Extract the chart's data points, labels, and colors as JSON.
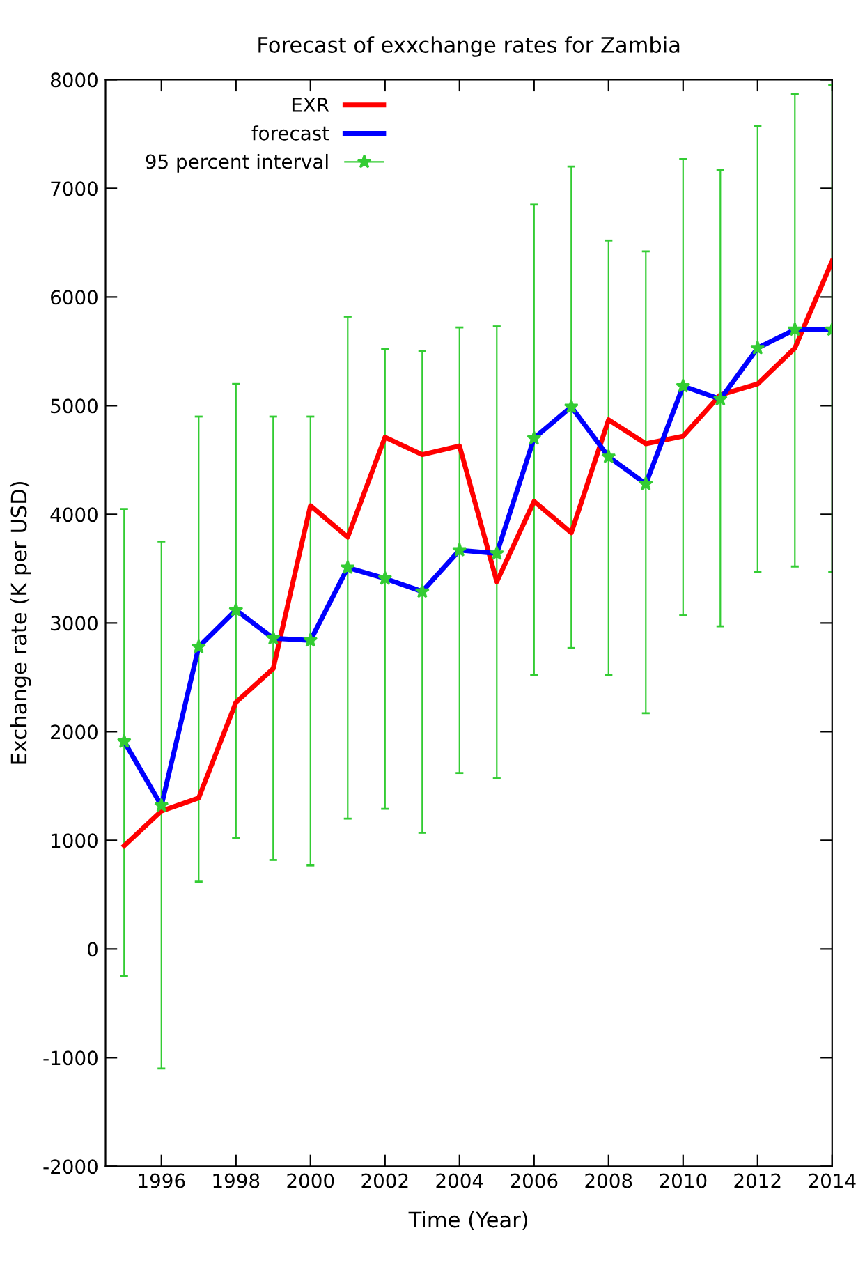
{
  "chart_data": {
    "type": "line",
    "title": "Forecast of exxchange rates for Zambia",
    "xlabel": "Time (Year)",
    "ylabel": "Exchange rate (K per USD)",
    "x": [
      1995,
      1996,
      1997,
      1998,
      1999,
      2000,
      2001,
      2002,
      2003,
      2004,
      2005,
      2006,
      2007,
      2008,
      2009,
      2010,
      2011,
      2012,
      2013,
      2014
    ],
    "series": [
      {
        "name": "EXR",
        "color": "#ff0000",
        "values": [
          950,
          1270,
          1390,
          2270,
          2580,
          4080,
          3790,
          4710,
          4550,
          4630,
          3380,
          4120,
          3830,
          4870,
          4650,
          4720,
          5100,
          5200,
          5530,
          6330
        ]
      },
      {
        "name": "forecast",
        "color": "#0000ff",
        "values": [
          1910,
          1320,
          2780,
          3120,
          2860,
          2840,
          3510,
          3410,
          3290,
          3670,
          3640,
          4700,
          4990,
          4530,
          4280,
          5180,
          5060,
          5530,
          5700,
          5700
        ]
      },
      {
        "name": "95 percent interval",
        "type": "scatter",
        "marker": "star",
        "color": "#33cc33",
        "values": [
          1910,
          1320,
          2780,
          3120,
          2860,
          2840,
          3510,
          3410,
          3290,
          3670,
          3640,
          4700,
          4990,
          4530,
          4280,
          5180,
          5060,
          5530,
          5700,
          5700
        ],
        "errors": [
          [
            -250,
            4050
          ],
          [
            -1100,
            3750
          ],
          [
            620,
            4900
          ],
          [
            1020,
            5200
          ],
          [
            820,
            4900
          ],
          [
            770,
            4900
          ],
          [
            1200,
            5820
          ],
          [
            1290,
            5520
          ],
          [
            1070,
            5500
          ],
          [
            1620,
            5720
          ],
          [
            1570,
            5730
          ],
          [
            2520,
            6850
          ],
          [
            2770,
            7200
          ],
          [
            2520,
            6520
          ],
          [
            2170,
            6420
          ],
          [
            3070,
            7270
          ],
          [
            2970,
            7170
          ],
          [
            3470,
            7570
          ],
          [
            3520,
            7870
          ],
          [
            3470,
            7950
          ]
        ]
      }
    ],
    "xlim": [
      1994.5,
      2014
    ],
    "xticks": [
      1996,
      1998,
      2000,
      2002,
      2004,
      2006,
      2008,
      2010,
      2012,
      2014
    ],
    "ylim": [
      -2000,
      8000
    ],
    "yticks": [
      -2000,
      -1000,
      0,
      1000,
      2000,
      3000,
      4000,
      5000,
      6000,
      7000,
      8000
    ],
    "grid": false,
    "legend": "top left",
    "marker": "none",
    "line_style": "solid"
  }
}
